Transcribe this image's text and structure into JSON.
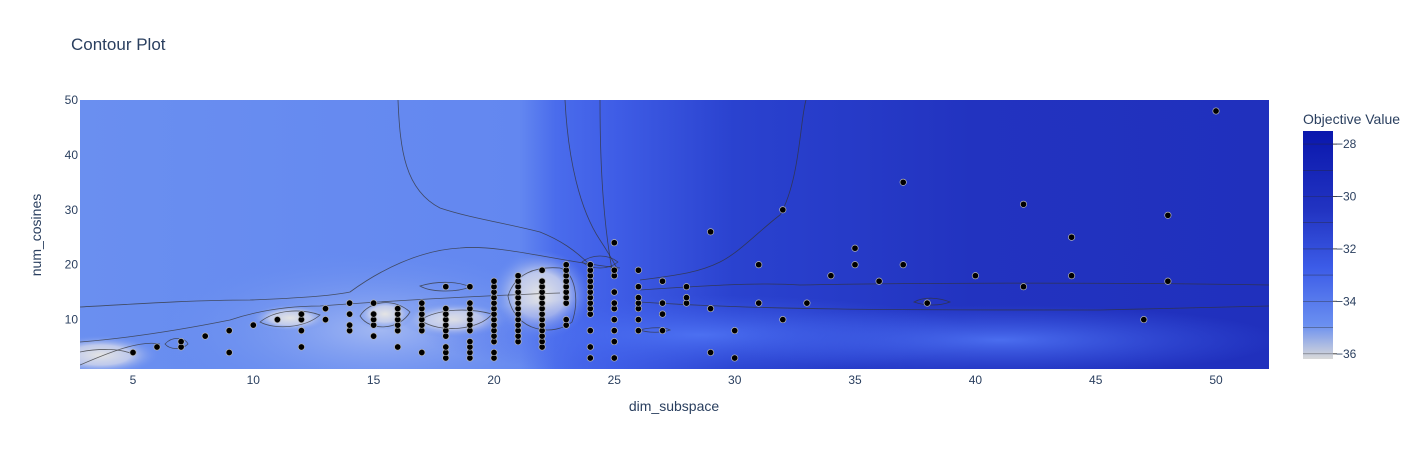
{
  "chart_data": {
    "type": "contour",
    "title": "Contour Plot",
    "xlabel": "dim_subspace",
    "ylabel": "num_cosines",
    "xlim": [
      2.8,
      52.2
    ],
    "ylim": [
      1,
      50
    ],
    "x_ticks": [
      5,
      10,
      15,
      20,
      25,
      30,
      35,
      40,
      45,
      50
    ],
    "y_ticks": [
      10,
      20,
      30,
      40,
      50
    ],
    "colorbar": {
      "title": "Objective Value",
      "range": [
        -36.2,
        -27.5
      ],
      "ticks": [
        -28,
        -30,
        -32,
        -34,
        -36
      ],
      "colors": {
        "lowest": "#d9d9d9",
        "low": "#6a8ff0",
        "mid": "#3c5ce8",
        "high": "#2234c2",
        "highest": "#0a17ad"
      }
    },
    "marker_color": "#000000",
    "points": [
      [
        5,
        4
      ],
      [
        6,
        5
      ],
      [
        7,
        5
      ],
      [
        7,
        6
      ],
      [
        8,
        7
      ],
      [
        9,
        4
      ],
      [
        9,
        8
      ],
      [
        10,
        9
      ],
      [
        11,
        10
      ],
      [
        12,
        5
      ],
      [
        12,
        8
      ],
      [
        12,
        10
      ],
      [
        12,
        11
      ],
      [
        13,
        10
      ],
      [
        13,
        12
      ],
      [
        14,
        8
      ],
      [
        14,
        9
      ],
      [
        14,
        11
      ],
      [
        14,
        13
      ],
      [
        15,
        7
      ],
      [
        15,
        9
      ],
      [
        15,
        10
      ],
      [
        15,
        11
      ],
      [
        15,
        13
      ],
      [
        16,
        5
      ],
      [
        16,
        8
      ],
      [
        16,
        9
      ],
      [
        16,
        10
      ],
      [
        16,
        11
      ],
      [
        16,
        12
      ],
      [
        17,
        4
      ],
      [
        17,
        8
      ],
      [
        17,
        9
      ],
      [
        17,
        10
      ],
      [
        17,
        11
      ],
      [
        17,
        12
      ],
      [
        17,
        13
      ],
      [
        18,
        3
      ],
      [
        18,
        4
      ],
      [
        18,
        5
      ],
      [
        18,
        7
      ],
      [
        18,
        8
      ],
      [
        18,
        9
      ],
      [
        18,
        10
      ],
      [
        18,
        11
      ],
      [
        18,
        12
      ],
      [
        18,
        16
      ],
      [
        19,
        3
      ],
      [
        19,
        4
      ],
      [
        19,
        5
      ],
      [
        19,
        6
      ],
      [
        19,
        8
      ],
      [
        19,
        9
      ],
      [
        19,
        10
      ],
      [
        19,
        11
      ],
      [
        19,
        12
      ],
      [
        19,
        13
      ],
      [
        19,
        16
      ],
      [
        20,
        3
      ],
      [
        20,
        4
      ],
      [
        20,
        6
      ],
      [
        20,
        7
      ],
      [
        20,
        8
      ],
      [
        20,
        9
      ],
      [
        20,
        10
      ],
      [
        20,
        11
      ],
      [
        20,
        12
      ],
      [
        20,
        13
      ],
      [
        20,
        14
      ],
      [
        20,
        15
      ],
      [
        20,
        16
      ],
      [
        20,
        17
      ],
      [
        21,
        6
      ],
      [
        21,
        7
      ],
      [
        21,
        8
      ],
      [
        21,
        9
      ],
      [
        21,
        10
      ],
      [
        21,
        11
      ],
      [
        21,
        12
      ],
      [
        21,
        13
      ],
      [
        21,
        14
      ],
      [
        21,
        15
      ],
      [
        21,
        16
      ],
      [
        21,
        17
      ],
      [
        21,
        18
      ],
      [
        22,
        5
      ],
      [
        22,
        6
      ],
      [
        22,
        7
      ],
      [
        22,
        8
      ],
      [
        22,
        9
      ],
      [
        22,
        10
      ],
      [
        22,
        11
      ],
      [
        22,
        12
      ],
      [
        22,
        13
      ],
      [
        22,
        14
      ],
      [
        22,
        15
      ],
      [
        22,
        16
      ],
      [
        22,
        17
      ],
      [
        22,
        19
      ],
      [
        23,
        9
      ],
      [
        23,
        10
      ],
      [
        23,
        13
      ],
      [
        23,
        14
      ],
      [
        23,
        15
      ],
      [
        23,
        16
      ],
      [
        23,
        17
      ],
      [
        23,
        18
      ],
      [
        23,
        19
      ],
      [
        23,
        20
      ],
      [
        24,
        3
      ],
      [
        24,
        5
      ],
      [
        24,
        8
      ],
      [
        24,
        11
      ],
      [
        24,
        12
      ],
      [
        24,
        13
      ],
      [
        24,
        14
      ],
      [
        24,
        15
      ],
      [
        24,
        16
      ],
      [
        24,
        17
      ],
      [
        24,
        18
      ],
      [
        24,
        19
      ],
      [
        24,
        20
      ],
      [
        25,
        3
      ],
      [
        25,
        6
      ],
      [
        25,
        8
      ],
      [
        25,
        10
      ],
      [
        25,
        12
      ],
      [
        25,
        13
      ],
      [
        25,
        15
      ],
      [
        25,
        18
      ],
      [
        25,
        19
      ],
      [
        25,
        24
      ],
      [
        26,
        8
      ],
      [
        26,
        10
      ],
      [
        26,
        12
      ],
      [
        26,
        13
      ],
      [
        26,
        14
      ],
      [
        26,
        16
      ],
      [
        26,
        19
      ],
      [
        27,
        8
      ],
      [
        27,
        11
      ],
      [
        27,
        13
      ],
      [
        27,
        17
      ],
      [
        28,
        13
      ],
      [
        28,
        14
      ],
      [
        28,
        16
      ],
      [
        29,
        4
      ],
      [
        29,
        12
      ],
      [
        29,
        26
      ],
      [
        30,
        3
      ],
      [
        30,
        8
      ],
      [
        31,
        13
      ],
      [
        31,
        20
      ],
      [
        32,
        10
      ],
      [
        32,
        30
      ],
      [
        33,
        13
      ],
      [
        34,
        18
      ],
      [
        35,
        20
      ],
      [
        35,
        23
      ],
      [
        36,
        17
      ],
      [
        37,
        20
      ],
      [
        37,
        35
      ],
      [
        38,
        13
      ],
      [
        40,
        18
      ],
      [
        42,
        16
      ],
      [
        42,
        31
      ],
      [
        44,
        18
      ],
      [
        44,
        25
      ],
      [
        47,
        10
      ],
      [
        48,
        17
      ],
      [
        48,
        29
      ],
      [
        50,
        48
      ]
    ]
  }
}
